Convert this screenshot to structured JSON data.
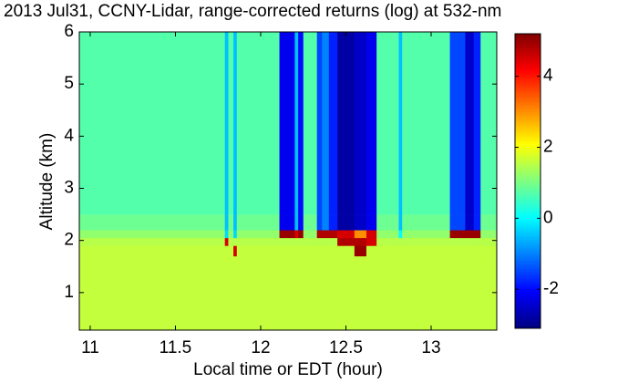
{
  "chart_data": {
    "type": "heatmap",
    "title": "2013 Jul31, CCNY-Lidar, range-corrected returns (log) at 532-nm",
    "xlabel": "Local time or EDT (hour)",
    "ylabel": "Altitude (km)",
    "colormap": "jet",
    "x": [
      10.936,
      11.79,
      11.81,
      11.84,
      11.86,
      12.11,
      12.2,
      12.22,
      12.25,
      12.33,
      12.36,
      12.4,
      12.45,
      12.55,
      12.62,
      12.68,
      12.81,
      12.83,
      13.11,
      13.2,
      13.25,
      13.29,
      13.385
    ],
    "y": [
      0.28,
      1.7,
      1.9,
      2.05,
      2.2,
      2.5,
      6
    ],
    "z": [
      [
        1.6,
        1.6,
        1.6,
        1.6,
        1.6,
        1.6,
        1.6,
        1.6,
        1.6,
        1.6,
        1.6,
        1.6,
        1.6,
        1.6,
        1.6,
        1.6,
        1.6,
        1.6,
        1.6,
        1.6,
        1.6,
        1.6
      ],
      [
        1.6,
        1.6,
        1.6,
        4.5,
        1.6,
        1.6,
        1.6,
        1.6,
        1.6,
        1.6,
        1.6,
        1.6,
        1.6,
        5,
        1.6,
        1.6,
        1.6,
        1.6,
        1.6,
        1.6,
        1.6,
        1.6
      ],
      [
        1.5,
        4.5,
        1.5,
        1.5,
        1.5,
        1.5,
        1.5,
        1.5,
        1.5,
        1.5,
        1.5,
        1.5,
        4.8,
        4.8,
        4.5,
        1.5,
        1.5,
        1.5,
        1.5,
        1.5,
        1.5,
        1.5
      ],
      [
        1.2,
        -0.3,
        1.2,
        -0.3,
        1.2,
        5,
        4.5,
        5,
        1.2,
        4.8,
        4.8,
        4.8,
        4.5,
        3,
        4.5,
        1.2,
        0,
        1.2,
        5,
        5,
        5,
        1.2
      ],
      [
        0.9,
        -0.5,
        0.9,
        -0.5,
        0.9,
        -2.2,
        -0.5,
        -2,
        0.9,
        -1.5,
        -1,
        -1.8,
        -2.8,
        -2.5,
        -2.2,
        0.9,
        -0.5,
        0.9,
        -1.5,
        -2.5,
        -1.8,
        0.9
      ],
      [
        0.7,
        -0.5,
        0.7,
        -0.5,
        0.7,
        -2.2,
        -0.5,
        -2,
        0.7,
        -1.5,
        -1,
        -1.8,
        -2.8,
        -2.5,
        -2.2,
        0.7,
        -0.5,
        0.7,
        -1.5,
        -2.5,
        -1.8,
        0.7
      ]
    ],
    "xlim": [
      10.936,
      13.385
    ],
    "ylim": [
      0.28,
      6
    ],
    "xticks": [
      11,
      11.5,
      12,
      12.5,
      13
    ],
    "yticks": [
      1,
      2,
      3,
      4,
      5,
      6
    ],
    "clim": [
      -3.1,
      5.2
    ],
    "cticks": [
      -2,
      0,
      2,
      4
    ]
  }
}
